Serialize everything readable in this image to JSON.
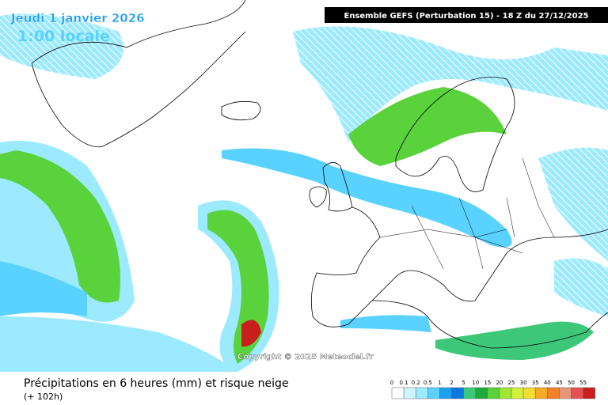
{
  "header": {
    "date": "Jeudi 1 janvier 2026",
    "time": "1:00 locale",
    "run": "Ensemble GEFS  (Perturbation 15)  -  18 Z du 27/12/2025"
  },
  "copyright": "Copyright © 2025 Meteociel.fr",
  "footer": {
    "title": "Précipitations en 6 heures (mm) et risque neige",
    "lead": "(+ 102h)"
  },
  "legend": {
    "ticks": [
      0,
      0.1,
      0.2,
      0.5,
      1,
      2,
      5,
      10,
      15,
      20,
      25,
      30,
      35,
      40,
      45,
      50,
      55
    ],
    "colors": [
      "#ffffff",
      "#cdf5ff",
      "#9beaff",
      "#5ad2ff",
      "#1ea0f0",
      "#0a78dc",
      "#3cc878",
      "#1eaa3c",
      "#5ad23c",
      "#a0e632",
      "#d2f03c",
      "#f0dc32",
      "#f5aa28",
      "#f08228",
      "#e6967a",
      "#e65050",
      "#c81e1e"
    ]
  }
}
